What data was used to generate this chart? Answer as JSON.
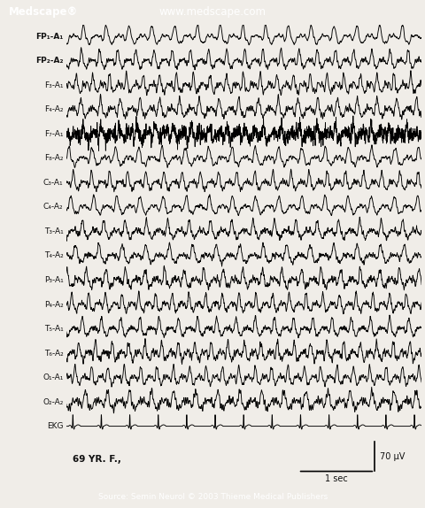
{
  "title_left": "Medscape®",
  "title_center": "www.medscape.com",
  "header_bg": "#1a3a6b",
  "header_text_color": "#ffffff",
  "orange_bar": "#e87820",
  "bg_color": "#f0ede8",
  "channels": [
    "FP₁-A₁",
    "FP₂-A₂",
    "F₃-A₁",
    "F₄-A₂",
    "F₇-A₁",
    "F₈-A₂",
    "C₃-A₁",
    "C₄-A₂",
    "T₃-A₁",
    "T₄-A₂",
    "P₃-A₁",
    "P₄-A₂",
    "T₅-A₁",
    "T₆-A₂",
    "O₁-A₁",
    "O₂-A₂",
    "EKG"
  ],
  "footer_text": "Source: Semin Neurol © 2003 Thieme Medical Publishers",
  "footer_bg": "#e87820",
  "annotation_left": "69 YR. F.,",
  "scale_label_v": "70 μV",
  "scale_label_h": "1 sec",
  "duration": 10.0,
  "fs": 200,
  "line_color": "#000000",
  "line_width": 0.65,
  "label_fontsize": 6.5,
  "header_fontsize": 8.5,
  "footer_fontsize": 6.5
}
